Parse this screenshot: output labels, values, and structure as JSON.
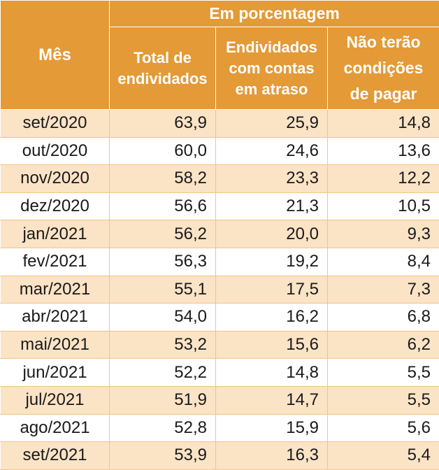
{
  "chart_data": {
    "type": "table",
    "header": {
      "month_label": "Mês",
      "group_label": "Em porcentagem",
      "col_total_lines": [
        "Total de",
        "endividados"
      ],
      "col_atraso_lines": [
        "Endividados",
        "com contas",
        "em atraso"
      ],
      "col_nao_lines": [
        "Não terão",
        "condições",
        "de pagar"
      ]
    },
    "series_names": [
      "Total de endividados",
      "Endividados com contas em atraso",
      "Não terão condições de pagar"
    ],
    "rows": [
      {
        "month": "set/2020",
        "total": "63,9",
        "atraso": "25,9",
        "nao_pagar": "14,8"
      },
      {
        "month": "out/2020",
        "total": "60,0",
        "atraso": "24,6",
        "nao_pagar": "13,6"
      },
      {
        "month": "nov/2020",
        "total": "58,2",
        "atraso": "23,3",
        "nao_pagar": "12,2"
      },
      {
        "month": "dez/2020",
        "total": "56,6",
        "atraso": "21,3",
        "nao_pagar": "10,5"
      },
      {
        "month": "jan/2021",
        "total": "56,2",
        "atraso": "20,0",
        "nao_pagar": "9,3"
      },
      {
        "month": "fev/2021",
        "total": "56,3",
        "atraso": "19,2",
        "nao_pagar": "8,4"
      },
      {
        "month": "mar/2021",
        "total": "55,1",
        "atraso": "17,5",
        "nao_pagar": "7,3"
      },
      {
        "month": "abr/2021",
        "total": "54,0",
        "atraso": "16,2",
        "nao_pagar": "6,8"
      },
      {
        "month": "mai/2021",
        "total": "53,2",
        "atraso": "15,6",
        "nao_pagar": "6,2"
      },
      {
        "month": "jun/2021",
        "total": "52,2",
        "atraso": "14,8",
        "nao_pagar": "5,5"
      },
      {
        "month": "jul/2021",
        "total": "51,9",
        "atraso": "14,7",
        "nao_pagar": "5,5"
      },
      {
        "month": "ago/2021",
        "total": "52,8",
        "atraso": "15,9",
        "nao_pagar": "5,6"
      },
      {
        "month": "set/2021",
        "total": "53,9",
        "atraso": "16,3",
        "nao_pagar": "5,4"
      }
    ]
  },
  "colors": {
    "header_bg": "#e39a37",
    "header_text": "#ffffff",
    "row_shaded": "#fbe3c6",
    "row_plain": "#ffffff"
  }
}
